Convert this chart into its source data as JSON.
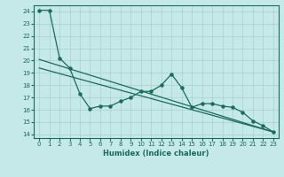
{
  "xlabel": "Humidex (Indice chaleur)",
  "bg_color": "#c5e8e8",
  "grid_color": "#a8d0d0",
  "line_color": "#1a6b5a",
  "xlim": [
    -0.5,
    23.5
  ],
  "ylim": [
    13.7,
    24.5
  ],
  "yticks": [
    14,
    15,
    16,
    17,
    18,
    19,
    20,
    21,
    22,
    23,
    24
  ],
  "xticks": [
    0,
    1,
    2,
    3,
    4,
    5,
    6,
    7,
    8,
    9,
    10,
    11,
    12,
    13,
    14,
    15,
    16,
    17,
    18,
    19,
    20,
    21,
    22,
    23
  ],
  "line1_x": [
    0,
    1,
    2,
    3,
    4,
    5,
    6,
    7,
    8,
    9,
    10,
    11,
    12,
    13,
    14,
    15,
    16,
    17,
    18,
    19,
    20,
    21,
    22,
    23
  ],
  "line1_y": [
    24.1,
    24.1,
    20.2,
    19.4,
    17.3,
    16.1,
    16.3,
    16.3,
    16.7,
    17.0,
    17.5,
    17.5,
    18.0,
    18.9,
    17.8,
    16.2,
    16.5,
    16.5,
    16.3,
    16.2,
    15.8,
    15.1,
    14.7,
    14.2
  ],
  "line2_x": [
    0,
    23
  ],
  "line2_y": [
    20.1,
    14.2
  ],
  "line3_x": [
    0,
    23
  ],
  "line3_y": [
    19.4,
    14.2
  ],
  "lw": 0.9,
  "ms": 2.2,
  "tick_labelsize": 5,
  "xlabel_fontsize": 6
}
